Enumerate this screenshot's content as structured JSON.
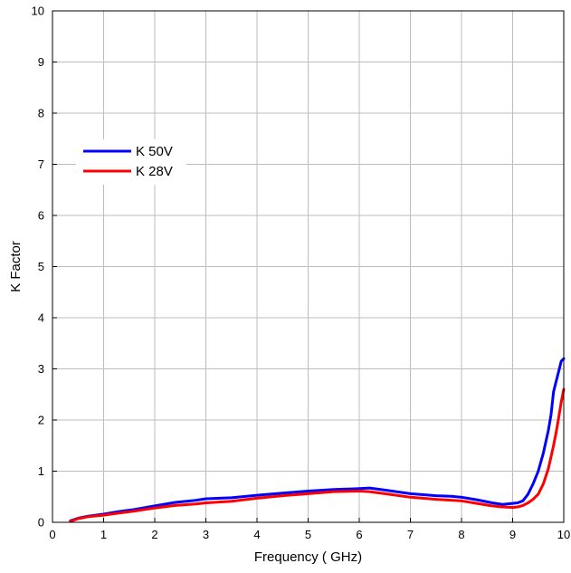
{
  "chart_data": {
    "type": "line",
    "xlabel": "Frequency ( GHz)",
    "ylabel": "K Factor",
    "xlim": [
      0,
      10
    ],
    "ylim": [
      0,
      10
    ],
    "xticks": [
      "0",
      "1",
      "2",
      "3",
      "4",
      "5",
      "6",
      "7",
      "8",
      "9",
      "10"
    ],
    "yticks": [
      "0",
      "1",
      "2",
      "3",
      "4",
      "5",
      "6",
      "7",
      "8",
      "9",
      "10"
    ],
    "grid": true,
    "legend_position": "upper-left",
    "series": [
      {
        "name": "K 50V",
        "color": "#0000ff",
        "x": [
          0.35,
          0.5,
          0.7,
          1.0,
          1.3,
          1.6,
          2.0,
          2.4,
          2.8,
          3.0,
          3.5,
          4.0,
          4.5,
          5.0,
          5.5,
          6.0,
          6.2,
          6.5,
          7.0,
          7.5,
          7.8,
          8.0,
          8.3,
          8.6,
          8.8,
          9.0,
          9.1,
          9.2,
          9.3,
          9.4,
          9.5,
          9.6,
          9.7,
          9.75,
          9.8,
          9.85,
          9.9,
          9.95,
          10.0
        ],
        "y": [
          0.03,
          0.08,
          0.12,
          0.16,
          0.21,
          0.25,
          0.32,
          0.39,
          0.43,
          0.46,
          0.48,
          0.53,
          0.57,
          0.61,
          0.64,
          0.66,
          0.67,
          0.63,
          0.56,
          0.52,
          0.51,
          0.49,
          0.44,
          0.38,
          0.35,
          0.37,
          0.38,
          0.42,
          0.55,
          0.75,
          1.0,
          1.35,
          1.8,
          2.1,
          2.55,
          2.75,
          2.95,
          3.15,
          3.2
        ]
      },
      {
        "name": "K 28V",
        "color": "#ff0000",
        "x": [
          0.35,
          0.5,
          0.7,
          1.0,
          1.3,
          1.6,
          2.0,
          2.4,
          2.8,
          3.0,
          3.5,
          4.0,
          4.5,
          5.0,
          5.5,
          6.0,
          6.2,
          6.5,
          7.0,
          7.5,
          8.0,
          8.3,
          8.6,
          8.8,
          9.0,
          9.1,
          9.2,
          9.3,
          9.4,
          9.5,
          9.6,
          9.7,
          9.8,
          9.85,
          9.9,
          9.95,
          10.0
        ],
        "y": [
          0.02,
          0.07,
          0.11,
          0.14,
          0.18,
          0.22,
          0.28,
          0.33,
          0.36,
          0.38,
          0.41,
          0.47,
          0.52,
          0.56,
          0.6,
          0.61,
          0.6,
          0.56,
          0.49,
          0.45,
          0.42,
          0.37,
          0.32,
          0.3,
          0.29,
          0.3,
          0.33,
          0.38,
          0.45,
          0.55,
          0.75,
          1.05,
          1.5,
          1.75,
          2.05,
          2.35,
          2.6
        ]
      }
    ]
  }
}
